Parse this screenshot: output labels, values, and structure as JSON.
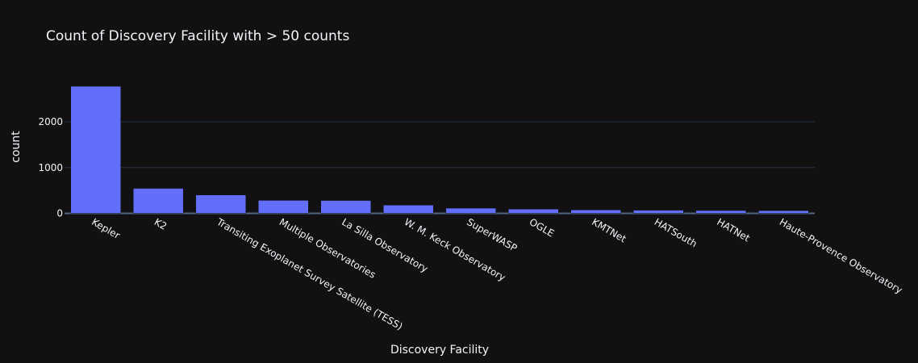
{
  "chart_data": {
    "type": "bar",
    "title": "Count of Discovery Facility with > 50 counts",
    "xlabel": "Discovery Facility",
    "ylabel": "count",
    "categories": [
      "Kepler",
      "K2",
      "Transiting Exoplanet Survey Satellite (TESS)",
      "Multiple Observatories",
      "La Silla Observatory",
      "W. M. Keck Observatory",
      "SuperWASP",
      "OGLE",
      "KMTNet",
      "HATSouth",
      "HATNet",
      "Haute-Provence Observatory"
    ],
    "values": [
      2777,
      546,
      402,
      284,
      281,
      180,
      113,
      93,
      75,
      69,
      62,
      60
    ],
    "ylim": [
      0,
      2900
    ],
    "yticks": [
      0,
      1000,
      2000
    ],
    "ytick_labels": [
      "0",
      "1000",
      "2000"
    ],
    "grid": true,
    "bar_color": "#636efa",
    "background_color": "#111111"
  }
}
